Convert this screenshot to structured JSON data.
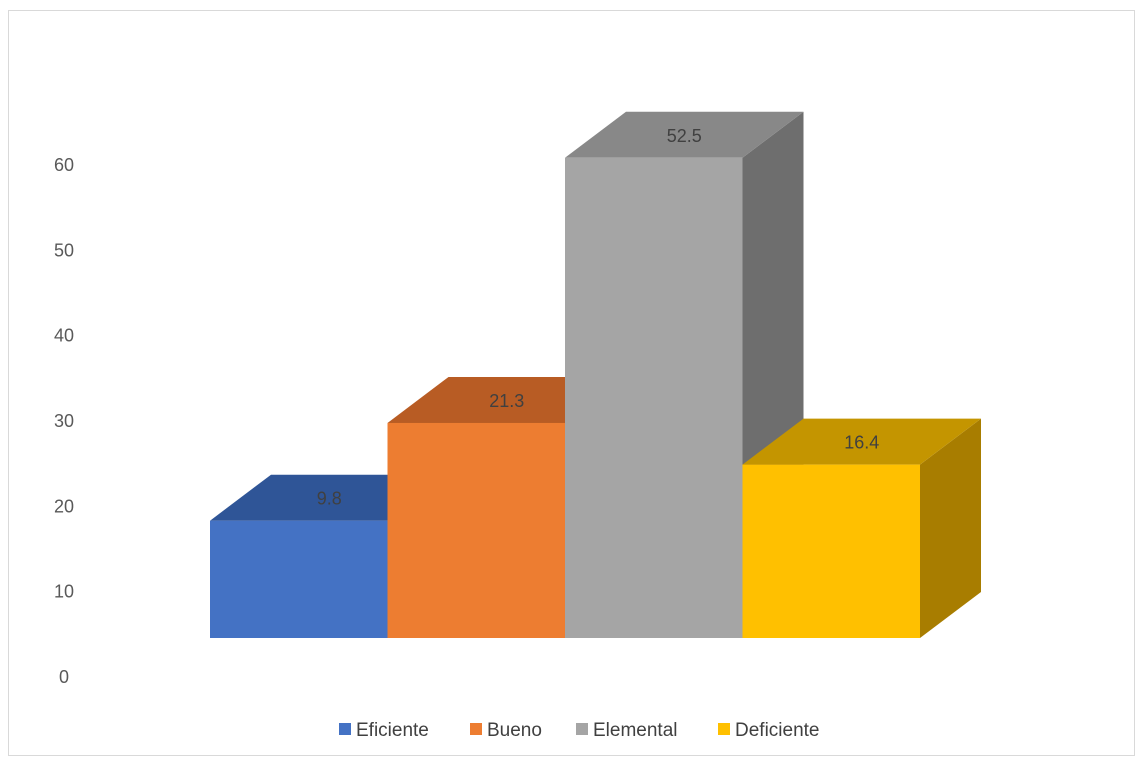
{
  "chart_data": {
    "type": "bar",
    "style": "3d-column",
    "categories": [
      "Eficiente",
      "Bueno",
      "Elemental",
      "Deficiente"
    ],
    "values": [
      9.8,
      21.3,
      52.5,
      16.4
    ],
    "data_labels": [
      "9.8",
      "21.3",
      "52.5",
      "16.4"
    ],
    "yticks": [
      "0",
      "10",
      "20",
      "30",
      "40",
      "50",
      "60"
    ],
    "ylim": [
      0,
      60
    ],
    "grid": false,
    "legend_position": "bottom",
    "title": "",
    "xlabel": "",
    "ylabel": "",
    "colors": {
      "front": [
        "#4472C4",
        "#ED7D31",
        "#A5A5A5",
        "#FFC000"
      ],
      "top": [
        "#2F5597",
        "#B85C24",
        "#888888",
        "#C49500"
      ],
      "side": [
        "#2E4D87",
        "#A35220",
        "#6E6E6E",
        "#A87D00"
      ]
    }
  }
}
